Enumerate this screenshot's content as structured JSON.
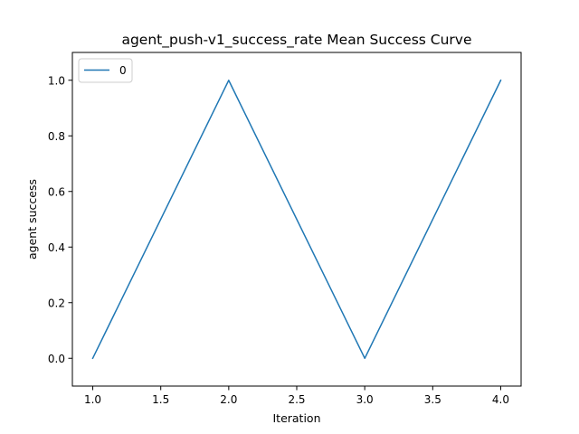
{
  "chart_data": {
    "type": "line",
    "title": "agent_push-v1_success_rate Mean Success Curve",
    "xlabel": "Iteration",
    "ylabel": "agent success",
    "xlim": [
      0.85,
      4.15
    ],
    "ylim": [
      -0.1,
      1.1
    ],
    "xticks": [
      1.0,
      1.5,
      2.0,
      2.5,
      3.0,
      3.5,
      4.0
    ],
    "xtick_labels": [
      "1.0",
      "1.5",
      "2.0",
      "2.5",
      "3.0",
      "3.5",
      "4.0"
    ],
    "yticks": [
      0.0,
      0.2,
      0.4,
      0.6,
      0.8,
      1.0
    ],
    "ytick_labels": [
      "0.0",
      "0.2",
      "0.4",
      "0.6",
      "0.8",
      "1.0"
    ],
    "grid": false,
    "legend_position": "upper left",
    "series": [
      {
        "name": "0",
        "color": "#1f77b4",
        "x": [
          1,
          2,
          3,
          4
        ],
        "y": [
          0.0,
          1.0,
          0.0,
          1.0
        ]
      }
    ]
  }
}
